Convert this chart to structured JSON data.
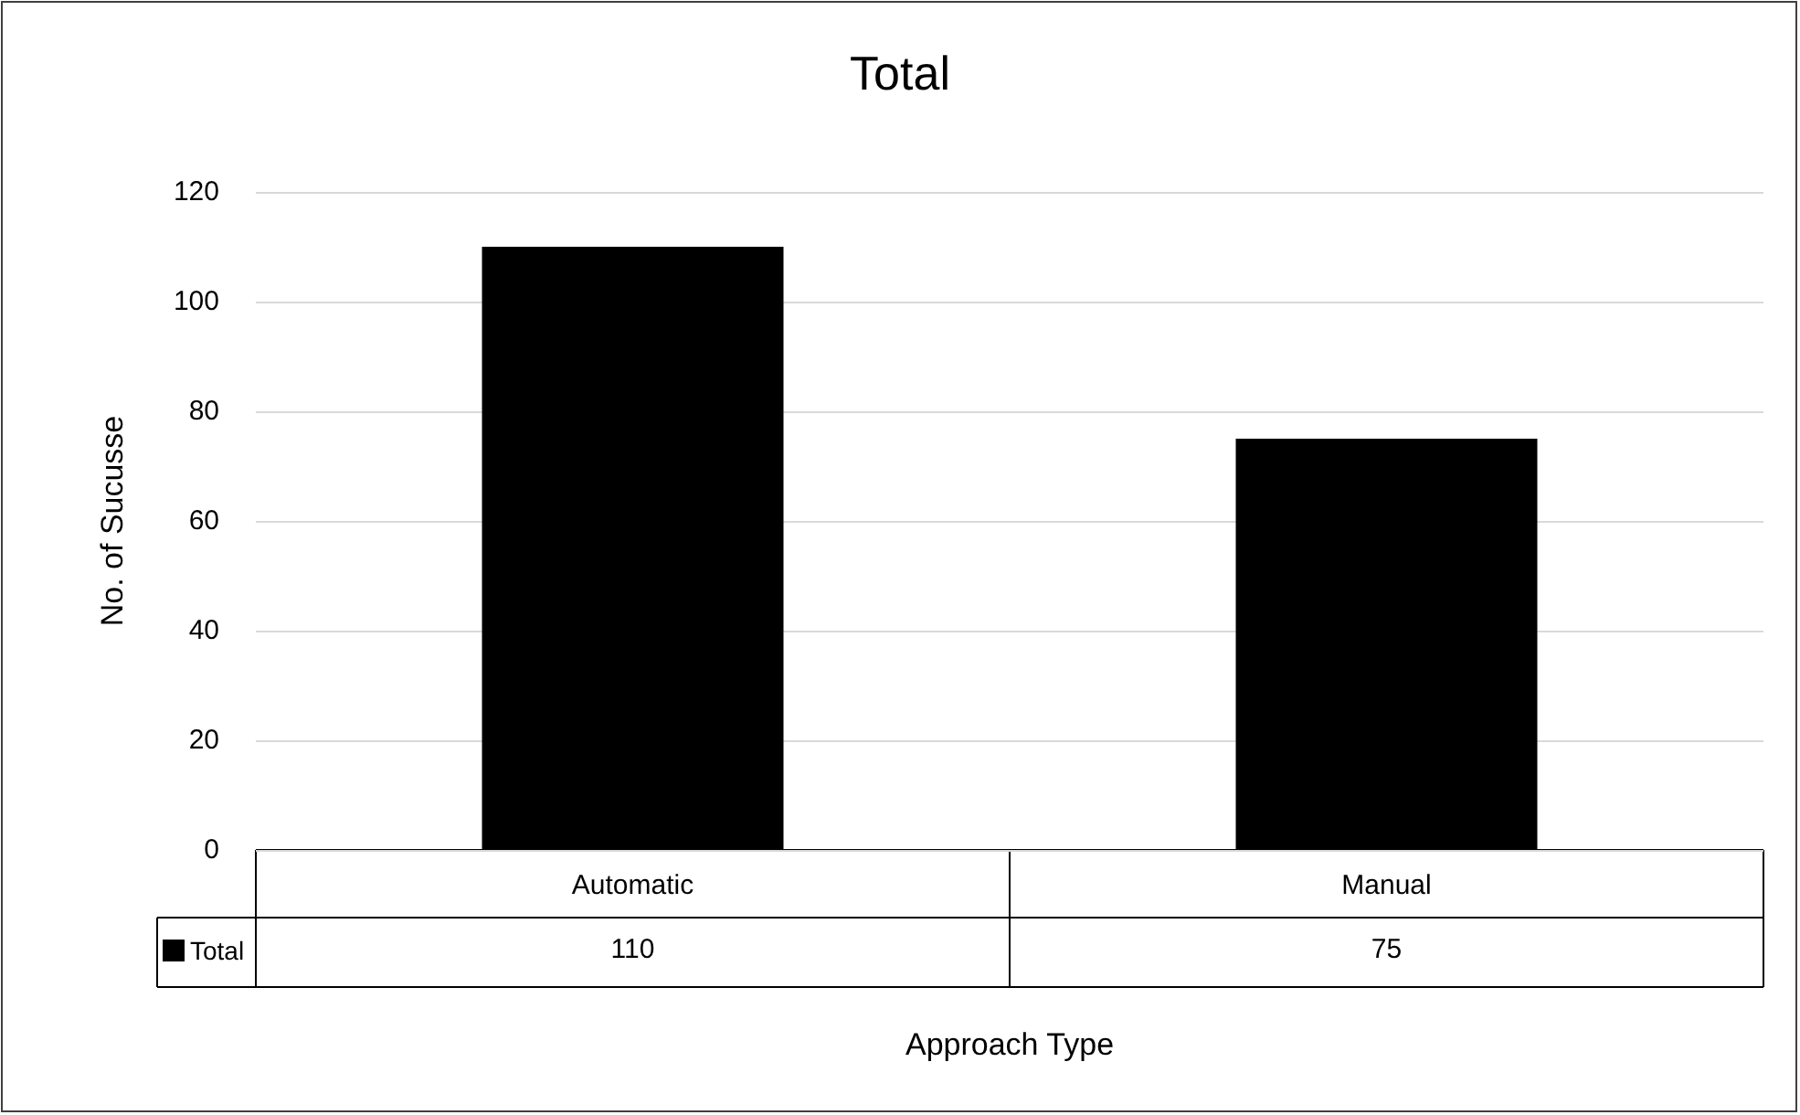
{
  "chart_data": {
    "type": "bar",
    "title": "Total",
    "xlabel": "Approach Type",
    "ylabel": "No. of Sucusse",
    "categories": [
      "Automatic",
      "Manual"
    ],
    "series": [
      {
        "name": "Total",
        "color": "#000000",
        "values": [
          110,
          75
        ]
      }
    ],
    "ylim": [
      0,
      120
    ],
    "yticks": [
      0,
      20,
      40,
      60,
      80,
      100,
      120
    ],
    "grid": "y",
    "legend": "bottom left",
    "data_labels": true
  }
}
